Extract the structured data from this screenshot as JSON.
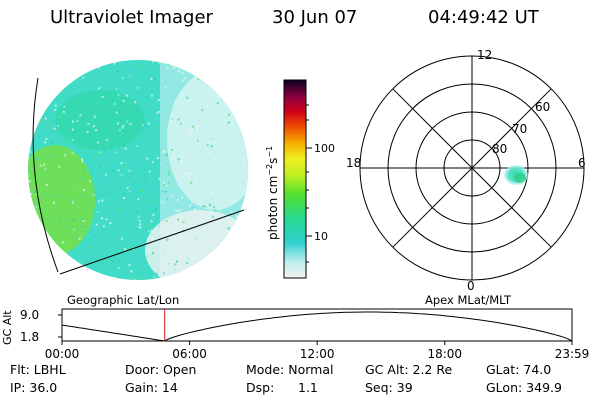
{
  "header": {
    "title": "Ultraviolet Imager",
    "date": "30 Jun 07",
    "time": "04:49:42 UT"
  },
  "colorbar": {
    "label": "photon cm",
    "label_sup1": "−2",
    "label_mid": "s",
    "label_sup2": "−1",
    "ticks": [
      "100",
      "10"
    ],
    "scale": "log"
  },
  "polar_plot": {
    "mlt_labels": [
      "12",
      "18",
      "6",
      "0"
    ],
    "mlat_labels": [
      "60",
      "70",
      "80"
    ]
  },
  "image_labels": {
    "left": "Geographic Lat/Lon",
    "right": "Apex MLat/MLT"
  },
  "timeline": {
    "ylabel": "GC Alt",
    "y_ticks": [
      "9.0",
      "1.8"
    ],
    "x_ticks": [
      "00:00",
      "06:00",
      "12:00",
      "18:00",
      "23:59"
    ],
    "current_marker_hours": 4.83
  },
  "info": {
    "flt": "Flt: LBHL",
    "ip": "IP: 36.0",
    "door": "Door: Open",
    "gain": "Gain: 14",
    "mode": "Mode: Normal",
    "dsp_label": "Dsp:",
    "dsp_value": "1.1",
    "gc_alt": "GC Alt: 2.2 Re",
    "seq": "Seq: 39",
    "glat": "GLat:  74.0",
    "glon": "GLon: 349.9"
  }
}
